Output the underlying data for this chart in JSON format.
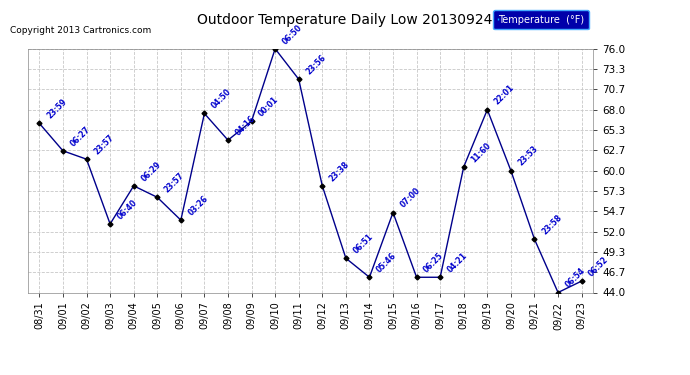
{
  "title": "Outdoor Temperature Daily Low 20130924",
  "copyright": "Copyright 2013 Cartronics.com",
  "legend_label": "Temperature  (°F)",
  "background_color": "#ffffff",
  "plot_bg_color": "#ffffff",
  "line_color": "#00008b",
  "point_color": "#000000",
  "label_color": "#0000cd",
  "grid_color": "#c8c8c8",
  "dates": [
    "08/31",
    "09/01",
    "09/02",
    "09/03",
    "09/04",
    "09/05",
    "09/06",
    "09/07",
    "09/08",
    "09/09",
    "09/10",
    "09/11",
    "09/12",
    "09/13",
    "09/14",
    "09/15",
    "09/16",
    "09/17",
    "09/18",
    "09/19",
    "09/20",
    "09/21",
    "09/22",
    "09/23"
  ],
  "temps": [
    66.2,
    62.6,
    61.5,
    53.0,
    58.0,
    56.5,
    53.5,
    67.5,
    64.0,
    66.5,
    76.0,
    72.0,
    58.0,
    48.5,
    46.0,
    54.5,
    46.0,
    46.0,
    60.5,
    68.0,
    60.0,
    51.0,
    44.0,
    45.5
  ],
  "time_labels": [
    "23:59",
    "06:27",
    "23:57",
    "06:40",
    "06:29",
    "23:57",
    "03:26",
    "04:50",
    "04:16",
    "00:01",
    "06:50",
    "23:56",
    "23:38",
    "06:51",
    "05:46",
    "07:00",
    "06:25",
    "04:21",
    "11:60",
    "22:01",
    "23:53",
    "23:58",
    "06:54",
    "06:52"
  ],
  "ylim": [
    44.0,
    76.0
  ],
  "yticks": [
    44.0,
    46.7,
    49.3,
    52.0,
    54.7,
    57.3,
    60.0,
    62.7,
    65.3,
    68.0,
    70.7,
    73.3,
    76.0
  ]
}
